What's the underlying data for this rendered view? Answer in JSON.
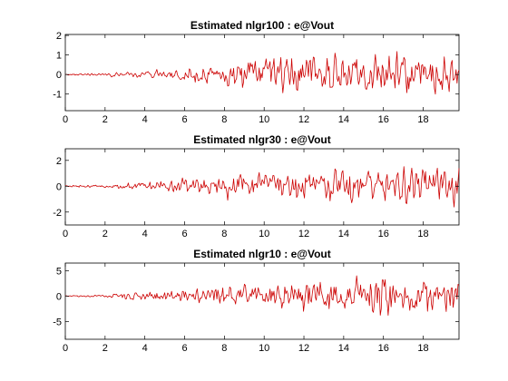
{
  "chart_data": [
    {
      "type": "line",
      "title": "Estimated nlgr100 : e@Vout",
      "xlabel": "",
      "ylabel": "",
      "xlim": [
        0,
        19.8
      ],
      "ylim": [
        -1.85,
        2.05
      ],
      "xticks": [
        0,
        2,
        4,
        6,
        8,
        10,
        12,
        14,
        16,
        18
      ],
      "yticks": [
        -1,
        0,
        1,
        2
      ],
      "grid": false,
      "color": "#cc0000",
      "envelope": [
        {
          "x": 0,
          "amp": 0.05
        },
        {
          "x": 2,
          "amp": 0.12
        },
        {
          "x": 4,
          "amp": 0.35
        },
        {
          "x": 6,
          "amp": 0.55
        },
        {
          "x": 8,
          "amp": 0.75
        },
        {
          "x": 9,
          "amp": 1.25
        },
        {
          "x": 11,
          "amp": 1.6
        },
        {
          "x": 12,
          "amp": 1.35
        },
        {
          "x": 14,
          "amp": 1.6
        },
        {
          "x": 16,
          "amp": 1.4
        },
        {
          "x": 18,
          "amp": 1.55
        },
        {
          "x": 19.8,
          "amp": 1.5
        }
      ]
    },
    {
      "type": "line",
      "title": "Estimated nlgr30 : e@Vout",
      "xlabel": "",
      "ylabel": "",
      "xlim": [
        0,
        19.8
      ],
      "ylim": [
        -3.0,
        2.9
      ],
      "xticks": [
        0,
        2,
        4,
        6,
        8,
        10,
        12,
        14,
        16,
        18
      ],
      "yticks": [
        -2,
        0,
        2
      ],
      "grid": false,
      "color": "#cc0000",
      "envelope": [
        {
          "x": 0,
          "amp": 0.1
        },
        {
          "x": 2,
          "amp": 0.2
        },
        {
          "x": 4,
          "amp": 0.55
        },
        {
          "x": 6,
          "amp": 0.9
        },
        {
          "x": 8,
          "amp": 1.3
        },
        {
          "x": 10,
          "amp": 1.5
        },
        {
          "x": 12,
          "amp": 1.6
        },
        {
          "x": 14,
          "amp": 1.8
        },
        {
          "x": 16,
          "amp": 2.3
        },
        {
          "x": 18,
          "amp": 2.1
        },
        {
          "x": 19.8,
          "amp": 2.4
        }
      ]
    },
    {
      "type": "line",
      "title": "Estimated nlgr10 : e@Vout",
      "xlabel": "",
      "ylabel": "",
      "xlim": [
        0,
        19.8
      ],
      "ylim": [
        -8.5,
        6.5
      ],
      "xticks": [
        0,
        2,
        4,
        6,
        8,
        10,
        12,
        14,
        16,
        18
      ],
      "yticks": [
        -5,
        0,
        5
      ],
      "grid": false,
      "color": "#cc0000",
      "envelope": [
        {
          "x": 0,
          "amp": 0.15
        },
        {
          "x": 2,
          "amp": 0.35
        },
        {
          "x": 3,
          "amp": 1.3
        },
        {
          "x": 6,
          "amp": 2.0
        },
        {
          "x": 8,
          "amp": 3.2
        },
        {
          "x": 10,
          "amp": 3.6
        },
        {
          "x": 12,
          "amp": 5.5
        },
        {
          "x": 14,
          "amp": 5.0
        },
        {
          "x": 16,
          "amp": 7.0
        },
        {
          "x": 18,
          "amp": 5.5
        },
        {
          "x": 19.8,
          "amp": 5.0
        }
      ]
    }
  ]
}
